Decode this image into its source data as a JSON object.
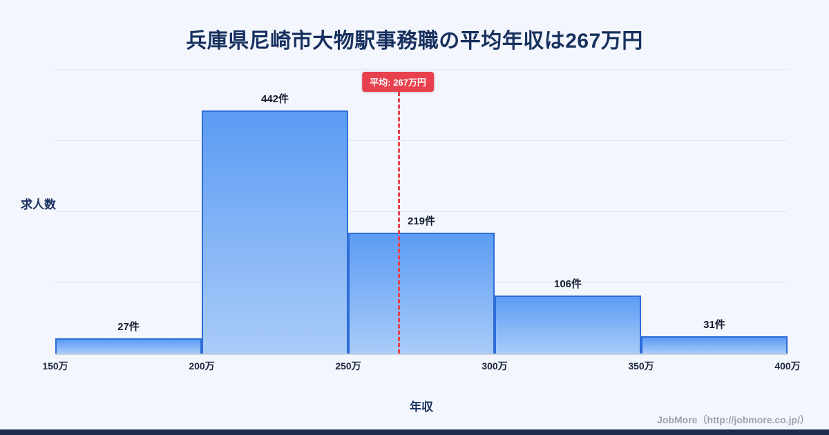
{
  "page": {
    "title": "兵庫県尼崎市大物駅事務職の平均年収は267万円",
    "footer_credit": "JobMore（http://jobmore.co.jp/）"
  },
  "chart_data": {
    "type": "bar",
    "title": "兵庫県尼崎市大物駅事務職の平均年収は267万円",
    "categories": [
      "150万-200万",
      "200万-250万",
      "250万-300万",
      "300万-350万",
      "350万-400万"
    ],
    "values": [
      27,
      442,
      219,
      106,
      31
    ],
    "value_labels": [
      "27件",
      "442件",
      "219件",
      "106件",
      "31件"
    ],
    "x_tick_labels": [
      "150万",
      "200万",
      "250万",
      "300万",
      "350万",
      "400万"
    ],
    "x_range": [
      150,
      400
    ],
    "xlabel": "年収",
    "ylabel": "求人数",
    "y_max": 517,
    "grid": true,
    "legend": false,
    "mean": {
      "value": 267,
      "label": "平均: 267万円"
    },
    "colors": {
      "background": "#f3f6fc",
      "bar_fill_top": "#5b9bf3",
      "bar_fill_bottom": "#a9ccf9",
      "bar_border": "#2e6cd9",
      "mean_line": "#e8414d",
      "badge_bg": "#e8414d",
      "badge_text": "#ffffff",
      "title_text": "#17305f",
      "tick_text": "#1b2540",
      "footer_text": "#9aa2b1",
      "footer_bar": "#1e2a4a"
    }
  }
}
